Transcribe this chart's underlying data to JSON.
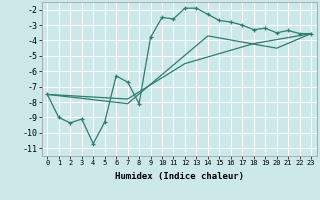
{
  "xlabel": "Humidex (Indice chaleur)",
  "background_color": "#cce8e8",
  "grid_color": "#ffffff",
  "line_color": "#2e7d6e",
  "xlim": [
    -0.5,
    23.5
  ],
  "ylim": [
    -11.5,
    -1.5
  ],
  "xticks": [
    0,
    1,
    2,
    3,
    4,
    5,
    6,
    7,
    8,
    9,
    10,
    11,
    12,
    13,
    14,
    15,
    16,
    17,
    18,
    19,
    20,
    21,
    22,
    23
  ],
  "yticks": [
    -11,
    -10,
    -9,
    -8,
    -7,
    -6,
    -5,
    -4,
    -3,
    -2
  ],
  "line1_x": [
    0,
    1,
    2,
    3,
    4,
    5,
    6,
    7,
    8,
    9,
    10,
    11,
    12,
    13,
    14,
    15,
    16,
    17,
    18,
    19,
    20,
    21,
    22,
    23
  ],
  "line1_y": [
    -7.5,
    -9.0,
    -9.35,
    -9.1,
    -10.7,
    -9.3,
    -6.3,
    -6.7,
    -8.1,
    -3.8,
    -2.5,
    -2.6,
    -1.9,
    -1.9,
    -2.3,
    -2.7,
    -2.8,
    -3.0,
    -3.3,
    -3.2,
    -3.5,
    -3.35,
    -3.55,
    -3.55
  ],
  "line2_x": [
    0,
    23
  ],
  "line2_y": [
    -7.5,
    -3.55
  ],
  "line3_x": [
    0,
    23
  ],
  "line3_y": [
    -7.5,
    -3.55
  ],
  "line3_waypoints_x": [
    0,
    7,
    12,
    18,
    23
  ],
  "line3_waypoints_y": [
    -7.5,
    -7.8,
    -5.5,
    -4.2,
    -3.55
  ],
  "line2_waypoints_x": [
    0,
    7,
    14,
    20,
    23
  ],
  "line2_waypoints_y": [
    -7.5,
    -8.1,
    -3.7,
    -4.5,
    -3.55
  ]
}
